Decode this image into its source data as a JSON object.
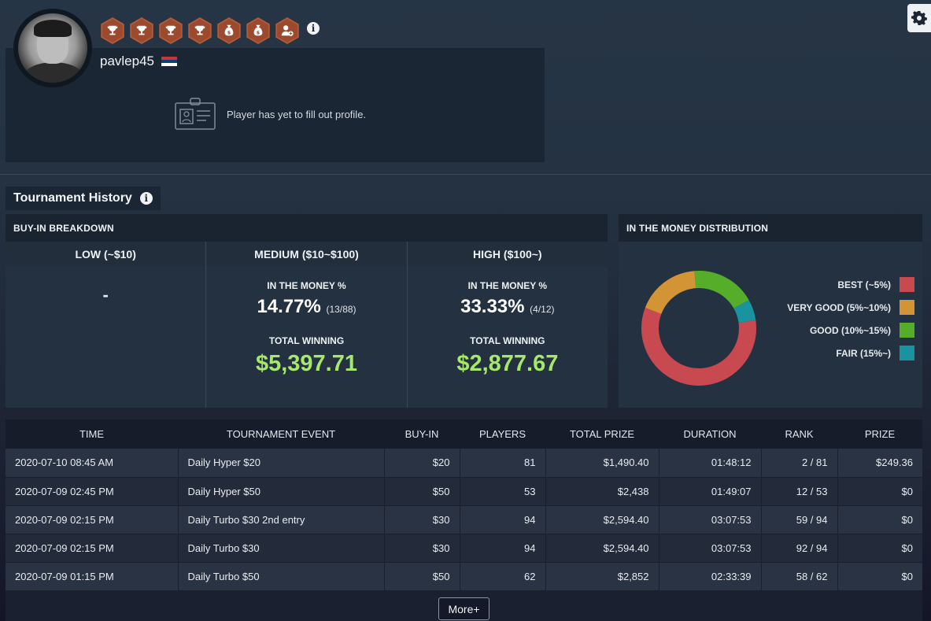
{
  "profile": {
    "username": "pavlep45",
    "empty_message": "Player has yet to fill out profile.",
    "badges": [
      "trophy-icon",
      "trophy-icon",
      "trophy-icon",
      "trophy-icon",
      "money-bag-icon",
      "money-bag-icon",
      "user-add-icon"
    ],
    "flag_colors": [
      "#c6363c",
      "#0c4076",
      "#ffffff"
    ]
  },
  "tournament_history": {
    "title": "Tournament History",
    "buyin_breakdown": {
      "title": "BUY-IN BREAKDOWN",
      "low": {
        "label": "LOW (~$10)",
        "value": "-"
      },
      "medium": {
        "label": "MEDIUM ($10~$100)",
        "itm_label": "IN THE MONEY %",
        "itm_pct": "14.77%",
        "itm_ratio": "(13/88)",
        "winning_label": "TOTAL WINNING",
        "winning": "$5,397.71"
      },
      "high": {
        "label": "HIGH ($100~)",
        "itm_label": "IN THE MONEY %",
        "itm_pct": "33.33%",
        "itm_ratio": "(4/12)",
        "winning_label": "TOTAL WINNING",
        "winning": "$2,877.67"
      }
    },
    "itm_distribution": {
      "title": "IN THE MONEY DISTRIBUTION",
      "legend": [
        {
          "label": "BEST (~5%)",
          "color": "#c8494f"
        },
        {
          "label": "VERY GOOD (5%~10%)",
          "color": "#d39435"
        },
        {
          "label": "GOOD (10%~15%)",
          "color": "#56ad2a"
        },
        {
          "label": "FAIR (15%~)",
          "color": "#1a93a0"
        }
      ]
    }
  },
  "chart_data": {
    "type": "pie",
    "categories": [
      "BEST (~5%)",
      "VERY GOOD (5%~10%)",
      "GOOD (10%~15%)",
      "FAIR (15%~)"
    ],
    "values": [
      58,
      18,
      18,
      6
    ],
    "colors": [
      "#c8494f",
      "#d39435",
      "#56ad2a",
      "#1a93a0"
    ]
  },
  "table": {
    "headers": [
      "TIME",
      "TOURNAMENT EVENT",
      "BUY-IN",
      "PLAYERS",
      "TOTAL PRIZE",
      "DURATION",
      "RANK",
      "PRIZE"
    ],
    "rows": [
      [
        "2020-07-10 08:45 AM",
        "Daily Hyper $20",
        "$20",
        "81",
        "$1,490.40",
        "01:48:12",
        "2 / 81",
        "$249.36"
      ],
      [
        "2020-07-09 02:45 PM",
        "Daily Hyper $50",
        "$50",
        "53",
        "$2,438",
        "01:49:07",
        "12 / 53",
        "$0"
      ],
      [
        "2020-07-09 02:15 PM",
        "Daily Turbo $30 2nd entry",
        "$30",
        "94",
        "$2,594.40",
        "03:07:53",
        "59 / 94",
        "$0"
      ],
      [
        "2020-07-09 02:15 PM",
        "Daily Turbo $30",
        "$30",
        "94",
        "$2,594.40",
        "03:07:53",
        "92 / 94",
        "$0"
      ],
      [
        "2020-07-09 01:15 PM",
        "Daily Turbo $50",
        "$50",
        "62",
        "$2,852",
        "02:33:39",
        "58 / 62",
        "$0"
      ]
    ],
    "more_label": "More+"
  }
}
